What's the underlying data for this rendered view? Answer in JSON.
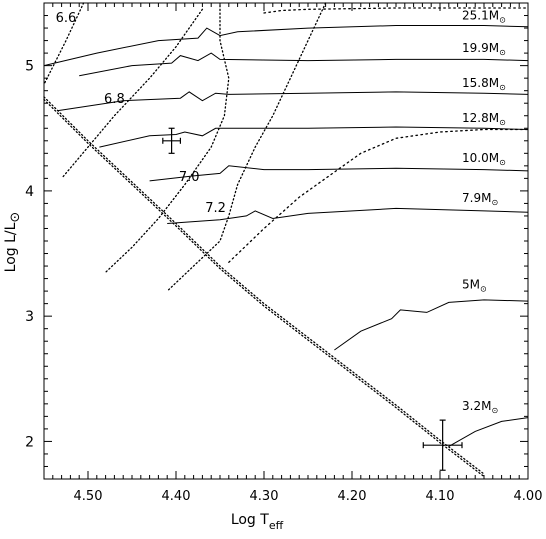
{
  "chart_data": {
    "type": "line",
    "xlabel_main": "Log T",
    "xlabel_sub": "eff",
    "ylabel_main": "Log L/L",
    "ylabel_sun": "⊙",
    "xlim": [
      4.55,
      4.0
    ],
    "ylim": [
      1.7,
      5.5
    ],
    "xticks": [
      {
        "v": 4.5,
        "label": "4.50"
      },
      {
        "v": 4.4,
        "label": "4.40"
      },
      {
        "v": 4.3,
        "label": "4.30"
      },
      {
        "v": 4.2,
        "label": "4.20"
      },
      {
        "v": 4.1,
        "label": "4.10"
      },
      {
        "v": 4.0,
        "label": "4.00"
      }
    ],
    "yticks": [
      {
        "v": 2,
        "label": "2"
      },
      {
        "v": 3,
        "label": "3"
      },
      {
        "v": 4,
        "label": "4"
      },
      {
        "v": 5,
        "label": "5"
      }
    ],
    "tracks": [
      {
        "name": "25.1M",
        "sun": "⊙",
        "label_at": [
          4.075,
          5.37
        ],
        "points": [
          [
            4.55,
            5.0
          ],
          [
            4.49,
            5.1
          ],
          [
            4.42,
            5.2
          ],
          [
            4.375,
            5.22
          ],
          [
            4.365,
            5.3
          ],
          [
            4.35,
            5.24
          ],
          [
            4.33,
            5.27
          ],
          [
            4.25,
            5.3
          ],
          [
            4.15,
            5.32
          ],
          [
            4.05,
            5.32
          ],
          [
            4.0,
            5.31
          ]
        ]
      },
      {
        "name": "19.9M",
        "sun": "⊙",
        "label_at": [
          4.075,
          5.11
        ],
        "points": [
          [
            4.51,
            4.92
          ],
          [
            4.45,
            5.0
          ],
          [
            4.405,
            5.02
          ],
          [
            4.395,
            5.08
          ],
          [
            4.375,
            5.04
          ],
          [
            4.36,
            5.1
          ],
          [
            4.35,
            5.05
          ],
          [
            4.25,
            5.04
          ],
          [
            4.15,
            5.05
          ],
          [
            4.05,
            5.05
          ],
          [
            4.0,
            5.04
          ]
        ]
      },
      {
        "name": "15.8M",
        "sun": "⊙",
        "label_at": [
          4.075,
          4.83
        ],
        "points": [
          [
            4.535,
            4.64
          ],
          [
            4.46,
            4.72
          ],
          [
            4.395,
            4.74
          ],
          [
            4.385,
            4.79
          ],
          [
            4.37,
            4.72
          ],
          [
            4.355,
            4.78
          ],
          [
            4.34,
            4.77
          ],
          [
            4.25,
            4.78
          ],
          [
            4.15,
            4.79
          ],
          [
            4.05,
            4.78
          ],
          [
            4.0,
            4.77
          ]
        ]
      },
      {
        "name": "12.8M",
        "sun": "⊙",
        "label_at": [
          4.075,
          4.55
        ],
        "points": [
          [
            4.487,
            4.35
          ],
          [
            4.43,
            4.44
          ],
          [
            4.4,
            4.45
          ],
          [
            4.39,
            4.47
          ],
          [
            4.37,
            4.44
          ],
          [
            4.355,
            4.5
          ],
          [
            4.34,
            4.5
          ],
          [
            4.25,
            4.5
          ],
          [
            4.15,
            4.51
          ],
          [
            4.05,
            4.5
          ],
          [
            4.0,
            4.49
          ]
        ]
      },
      {
        "name": "10.0M",
        "sun": "⊙",
        "label_at": [
          4.075,
          4.23
        ],
        "points": [
          [
            4.43,
            4.08
          ],
          [
            4.38,
            4.12
          ],
          [
            4.35,
            4.14
          ],
          [
            4.34,
            4.2
          ],
          [
            4.3,
            4.17
          ],
          [
            4.25,
            4.17
          ],
          [
            4.15,
            4.18
          ],
          [
            4.05,
            4.17
          ],
          [
            4.0,
            4.16
          ]
        ]
      },
      {
        "name": "7.9M",
        "sun": "⊙",
        "label_at": [
          4.075,
          3.91
        ],
        "points": [
          [
            4.41,
            3.74
          ],
          [
            4.35,
            3.77
          ],
          [
            4.32,
            3.8
          ],
          [
            4.31,
            3.84
          ],
          [
            4.29,
            3.78
          ],
          [
            4.25,
            3.82
          ],
          [
            4.15,
            3.86
          ],
          [
            4.05,
            3.84
          ],
          [
            4.0,
            3.83
          ]
        ]
      },
      {
        "name": "5M",
        "sun": "⊙",
        "label_at": [
          4.075,
          3.22
        ],
        "points": [
          [
            4.22,
            2.73
          ],
          [
            4.19,
            2.88
          ],
          [
            4.155,
            2.98
          ],
          [
            4.145,
            3.05
          ],
          [
            4.115,
            3.03
          ],
          [
            4.09,
            3.11
          ],
          [
            4.05,
            3.13
          ],
          [
            4.0,
            3.12
          ]
        ]
      },
      {
        "name": "3.2M",
        "sun": "⊙",
        "label_at": [
          4.075,
          2.25
        ],
        "points": [
          [
            4.09,
            1.96
          ],
          [
            4.06,
            2.08
          ],
          [
            4.03,
            2.16
          ],
          [
            4.0,
            2.19
          ]
        ]
      }
    ],
    "isochrones": [
      {
        "label": "6.6",
        "label_at": [
          4.525,
          5.35
        ],
        "points": [
          [
            4.505,
            5.5
          ],
          [
            4.525,
            5.2
          ],
          [
            4.55,
            4.85
          ]
        ]
      },
      {
        "label": "6.8",
        "label_at": [
          4.47,
          4.7
        ],
        "points": [
          [
            4.37,
            5.45
          ],
          [
            4.4,
            5.15
          ],
          [
            4.43,
            4.9
          ],
          [
            4.47,
            4.6
          ],
          [
            4.5,
            4.35
          ],
          [
            4.53,
            4.1
          ]
        ]
      },
      {
        "label": "7.0",
        "label_at": [
          4.385,
          4.08
        ],
        "points": [
          [
            4.35,
            5.48
          ],
          [
            4.35,
            5.2
          ],
          [
            4.34,
            4.9
          ],
          [
            4.345,
            4.6
          ],
          [
            4.36,
            4.35
          ],
          [
            4.39,
            4.05
          ],
          [
            4.42,
            3.78
          ],
          [
            4.45,
            3.55
          ],
          [
            4.48,
            3.35
          ]
        ]
      },
      {
        "label": "7.2",
        "label_at": [
          4.355,
          3.83
        ],
        "points": [
          [
            4.23,
            5.5
          ],
          [
            4.25,
            5.2
          ],
          [
            4.27,
            4.9
          ],
          [
            4.29,
            4.6
          ],
          [
            4.31,
            4.35
          ],
          [
            4.33,
            4.05
          ],
          [
            4.34,
            3.8
          ],
          [
            4.35,
            3.6
          ],
          [
            4.41,
            3.2
          ]
        ]
      }
    ],
    "envelopes": [
      {
        "points": [
          [
            4.34,
            3.43
          ],
          [
            4.3,
            3.7
          ],
          [
            4.26,
            3.95
          ],
          [
            4.22,
            4.15
          ],
          [
            4.19,
            4.3
          ],
          [
            4.15,
            4.42
          ],
          [
            4.1,
            4.47
          ],
          [
            4.05,
            4.49
          ],
          [
            4.0,
            4.49
          ]
        ]
      },
      {
        "points": [
          [
            4.3,
            5.42
          ],
          [
            4.28,
            5.44
          ],
          [
            4.25,
            5.45
          ],
          [
            4.15,
            5.46
          ],
          [
            4.05,
            5.46
          ],
          [
            4.0,
            5.46
          ]
        ]
      }
    ],
    "zams": {
      "points": [
        [
          4.55,
          4.75
        ],
        [
          4.5,
          4.4
        ],
        [
          4.45,
          4.07
        ],
        [
          4.4,
          3.74
        ],
        [
          4.35,
          3.4
        ],
        [
          4.3,
          3.1
        ],
        [
          4.25,
          2.83
        ],
        [
          4.2,
          2.56
        ],
        [
          4.15,
          2.29
        ],
        [
          4.1,
          2.01
        ],
        [
          4.05,
          1.74
        ]
      ]
    },
    "datapoints": [
      {
        "x": 4.405,
        "y": 4.4,
        "xerr": 0.01,
        "yerr": 0.1
      },
      {
        "x": 4.097,
        "y": 1.97,
        "xerr": 0.022,
        "yerr": 0.2
      }
    ]
  }
}
